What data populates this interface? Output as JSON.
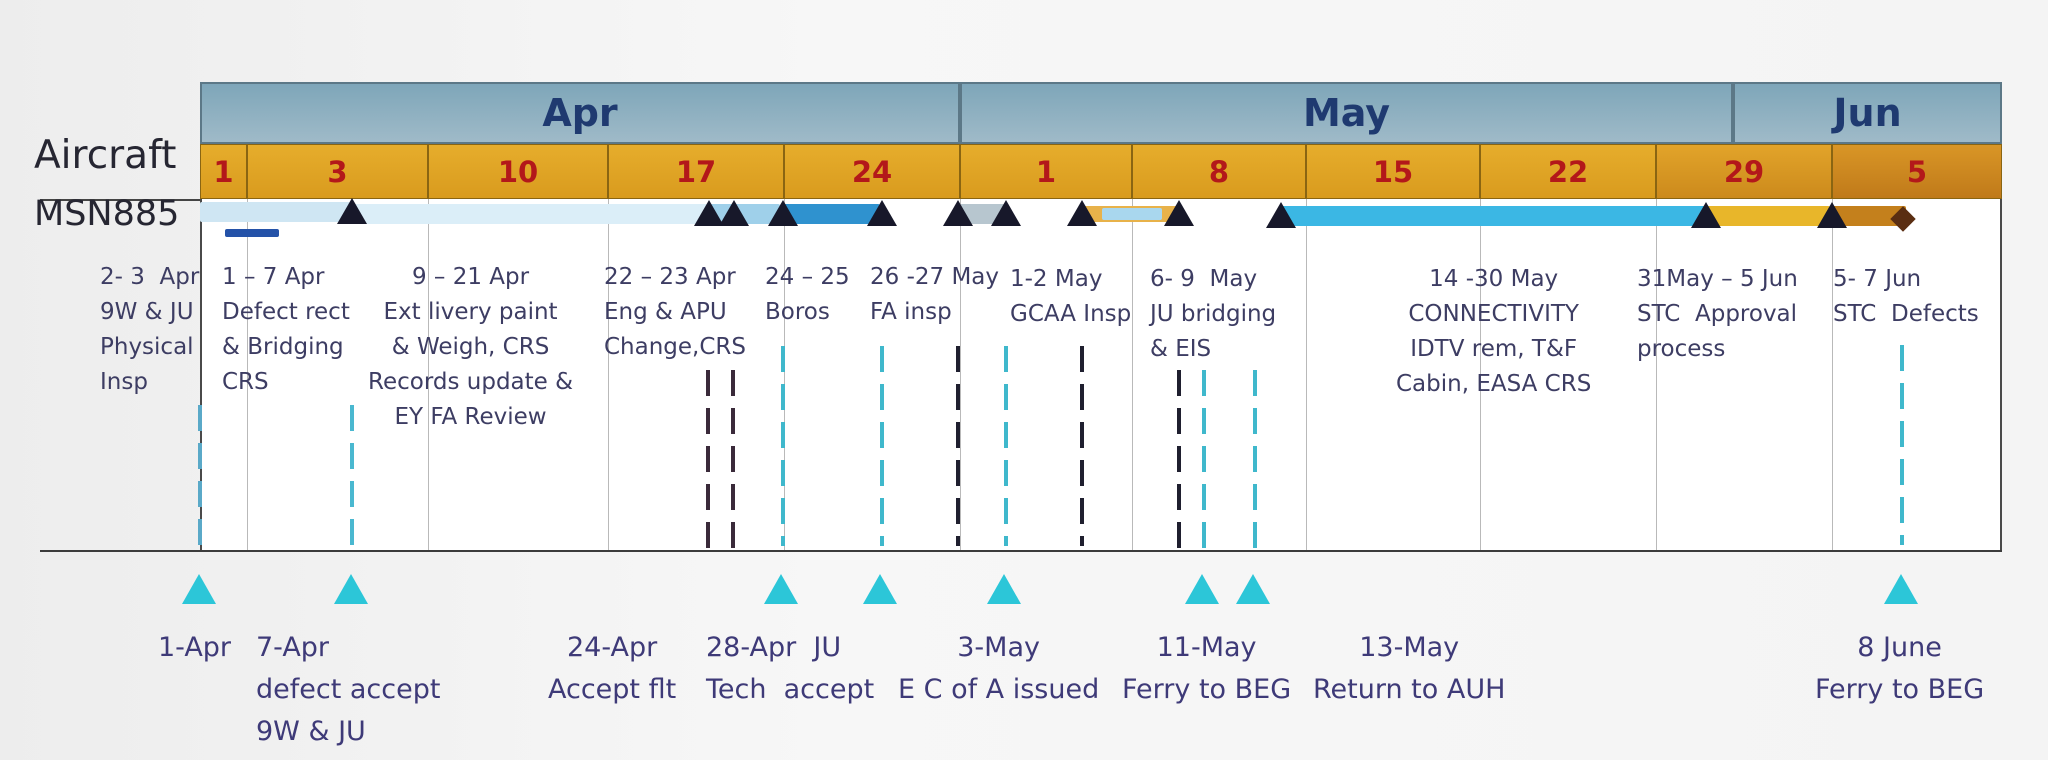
{
  "months": [
    {
      "label": "Apr"
    },
    {
      "label": "May"
    },
    {
      "label": "Jun"
    }
  ],
  "weeks": [
    "1",
    "3",
    "10",
    "17",
    "24",
    "1",
    "8",
    "15",
    "22",
    "29",
    "5"
  ],
  "row_labels": {
    "aircraft": "Aircraft",
    "msn": "MSN885"
  },
  "activities": [
    {
      "id": "a1",
      "text": "2- 3  Apr\n9W & JU\nPhysical\nInsp"
    },
    {
      "id": "a2",
      "text": "1 – 7 Apr\nDefect rect\n& Bridging\nCRS"
    },
    {
      "id": "a3",
      "text": "9 – 21 Apr\nExt livery paint\n& Weigh, CRS\nRecords update &\nEY FA Review"
    },
    {
      "id": "a4",
      "text": "22 – 23 Apr\nEng & APU\nChange,CRS"
    },
    {
      "id": "a5",
      "text": "24 – 25\nBoros"
    },
    {
      "id": "a6",
      "text": "26 -27 May\nFA insp"
    },
    {
      "id": "a7",
      "text": "1-2 May\nGCAA Insp"
    },
    {
      "id": "a8",
      "text": "6- 9  May\nJU bridging\n& EIS"
    },
    {
      "id": "a9",
      "text": "14 -30 May\nCONNECTIVITY\nIDTV rem, T&F\nCabin, EASA CRS"
    },
    {
      "id": "a10",
      "text": "31May – 5 Jun\nSTC  Approval\nprocess"
    },
    {
      "id": "a11",
      "text": "5- 7 Jun\nSTC  Defects"
    }
  ],
  "milestones": [
    {
      "id": "m1",
      "text": "1-Apr"
    },
    {
      "id": "m2",
      "text": "7-Apr\ndefect accept\n9W & JU"
    },
    {
      "id": "m3",
      "text": "24-Apr\nAccept flt"
    },
    {
      "id": "m4",
      "text": "28-Apr  JU\nTech  accept"
    },
    {
      "id": "m5",
      "text": "3-May\nE C of A issued"
    },
    {
      "id": "m6",
      "text": "11-May\nFerry to BEG"
    },
    {
      "id": "m7",
      "text": "13-May\nReturn to AUH"
    },
    {
      "id": "m8",
      "text": "8 June\nFerry to BEG"
    }
  ],
  "colors": {
    "month_header": "#8fb1c2",
    "week_header": "#e0a426",
    "week_text": "#b3181a",
    "bar_light": "#cfe6f3",
    "bar_mid": "#9fd0ea",
    "bar_blue": "#2f92cf",
    "bar_cyan": "#3bb7e4",
    "bar_amber": "#e8a92c",
    "milestone_marker": "#2cc6d8",
    "activity_marker": "#17182a"
  }
}
